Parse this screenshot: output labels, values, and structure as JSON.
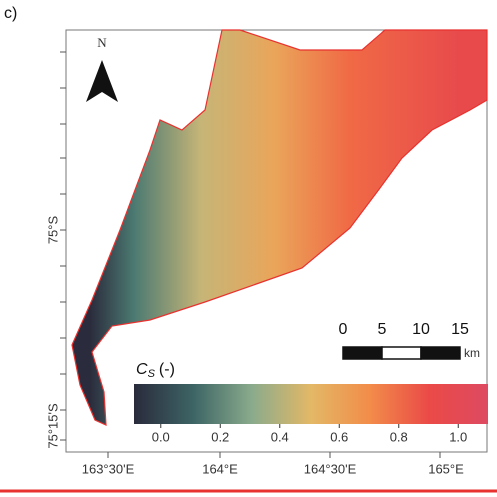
{
  "panel_label": "c)",
  "north_arrow": {
    "label": "N"
  },
  "y_axis": {
    "ticks": [
      "75°S",
      "75°15'S"
    ]
  },
  "x_axis": {
    "ticks": [
      "163°30'E",
      "164°E",
      "164°30'E",
      "165°E"
    ]
  },
  "scale_bar": {
    "ticks": [
      0,
      5,
      10,
      15
    ],
    "unit": "km"
  },
  "colorbar": {
    "label": "C",
    "label_subscript": "S",
    "label_suffix": "(-)",
    "range": [
      -0.09,
      1.1
    ],
    "colors": [
      "#2a2b3c",
      "#3d6465",
      "#8aab8c",
      "#e3b866",
      "#f28c4a",
      "#ea4a47",
      "#de4a62"
    ],
    "ticks": [
      {
        "value": 0,
        "label": "0.0"
      },
      {
        "value": 0.2,
        "label": "0.2"
      },
      {
        "value": 0.4,
        "label": "0.4"
      },
      {
        "value": 0.6,
        "label": "0.6"
      },
      {
        "value": 0.8,
        "label": "0.8"
      },
      {
        "value": 1,
        "label": "1.0"
      }
    ]
  }
}
